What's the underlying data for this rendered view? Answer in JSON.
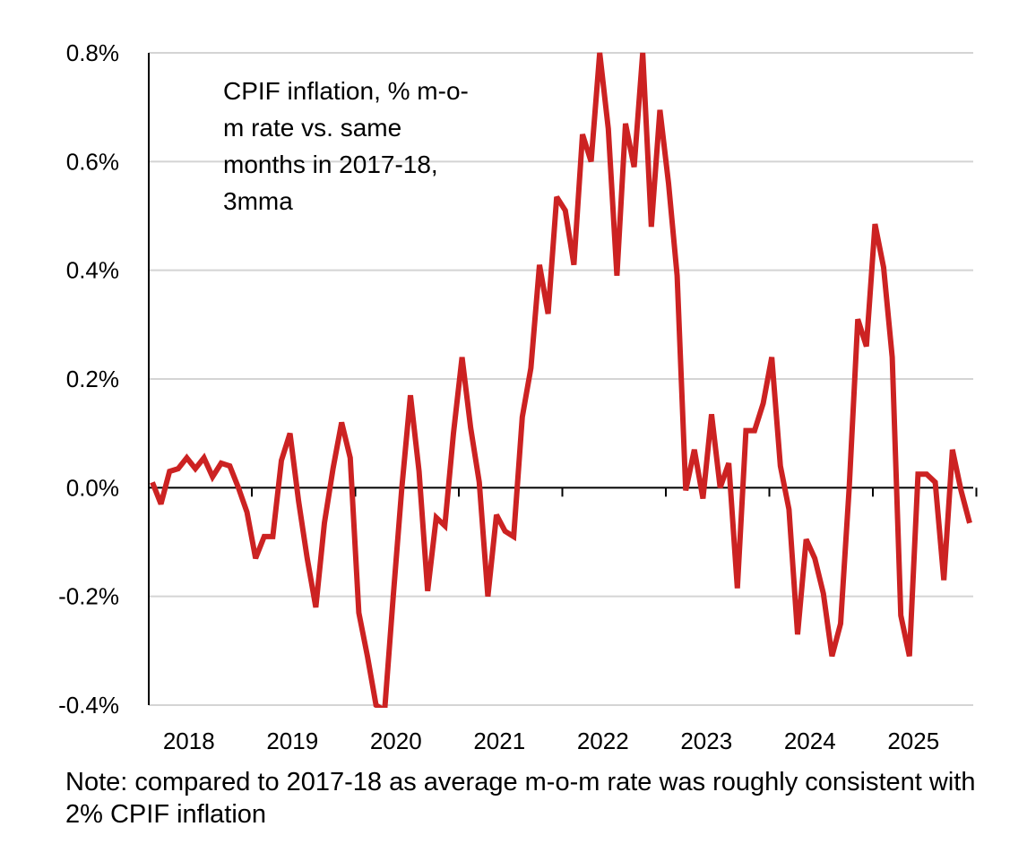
{
  "chart_data": {
    "type": "line",
    "title": "CPIF inflation, % m-o-m rate vs. same months in 2017-18, 3mma",
    "title_lines": [
      "CPIF inflation, % m-o-",
      "m rate vs. same",
      "months in 2017-18,",
      "3mma"
    ],
    "xlabel": "",
    "ylabel": "",
    "ylim": [
      -0.4,
      0.8
    ],
    "y_ticks": [
      -0.4,
      -0.2,
      0.0,
      0.2,
      0.4,
      0.6,
      0.8
    ],
    "y_tick_labels": [
      "-0.4%",
      "-0.2%",
      "0.0%",
      "0.2%",
      "0.4%",
      "0.6%",
      "0.8%"
    ],
    "x_tick_labels": [
      "2018",
      "2019",
      "2020",
      "2021",
      "2022",
      "2023",
      "2024",
      "2025"
    ],
    "x_start": "2018-01",
    "x_end": "2025-12",
    "frequency": "monthly",
    "grid": true,
    "legend": "none",
    "series": [
      {
        "name": "CPIF inflation m-o-m vs 2017-18 (3mma)",
        "color": "#cc2222",
        "values": [
          0.01,
          -0.03,
          0.03,
          0.035,
          0.055,
          0.035,
          0.055,
          0.02,
          0.045,
          0.04,
          0.0,
          -0.045,
          -0.13,
          -0.09,
          -0.09,
          0.05,
          0.1,
          -0.025,
          -0.13,
          -0.22,
          -0.065,
          0.035,
          0.12,
          0.055,
          -0.23,
          -0.31,
          -0.4,
          -0.41,
          -0.2,
          0.0,
          0.17,
          0.03,
          -0.19,
          -0.055,
          -0.07,
          0.1,
          0.24,
          0.11,
          0.01,
          -0.2,
          -0.05,
          -0.08,
          -0.09,
          0.13,
          0.22,
          0.41,
          0.32,
          0.535,
          0.51,
          0.41,
          0.65,
          0.6,
          0.8,
          0.66,
          0.39,
          0.67,
          0.59,
          0.8,
          0.48,
          0.695,
          0.56,
          0.39,
          -0.005,
          0.07,
          -0.02,
          0.135,
          0.0,
          0.045,
          -0.185,
          0.105,
          0.105,
          0.155,
          0.24,
          0.04,
          -0.04,
          -0.27,
          -0.095,
          -0.13,
          -0.195,
          -0.31,
          -0.25,
          0.0,
          0.31,
          0.26,
          0.485,
          0.405,
          0.24,
          -0.235,
          -0.31,
          0.025,
          0.025,
          0.01,
          -0.17,
          0.07,
          -0.005,
          -0.065
        ]
      }
    ],
    "note": "Note: compared to 2017-18 as average m-o-m rate was roughly consistent with 2% CPIF inflation"
  },
  "colors": {
    "line": "#cc2222",
    "grid": "#d4d4d4",
    "axis": "#000000"
  }
}
